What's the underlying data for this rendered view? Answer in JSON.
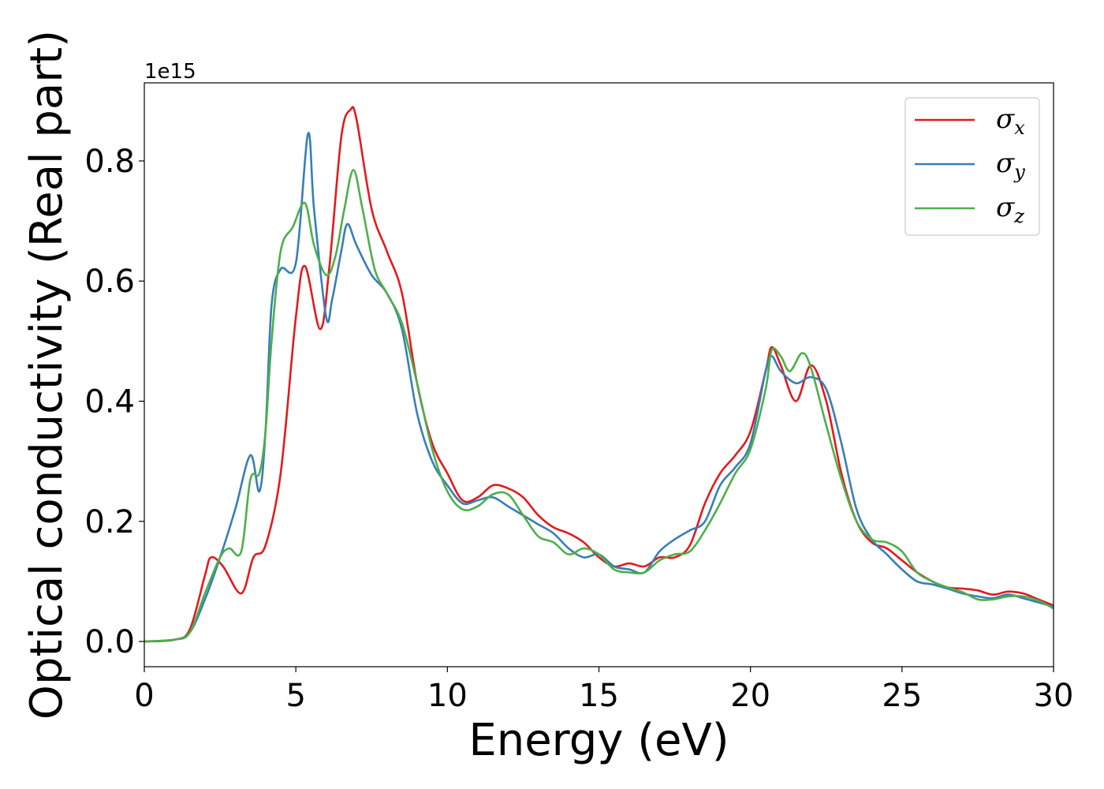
{
  "chart_data": {
    "type": "line",
    "title": "",
    "xlabel": "Energy (eV)",
    "ylabel": "Optical conductivity (Real part)",
    "y_offset_label": "1e15",
    "xlim": [
      0,
      30
    ],
    "ylim": [
      -0.042,
      0.93
    ],
    "xticks": [
      0,
      5,
      10,
      15,
      20,
      25,
      30
    ],
    "xtick_labels": [
      "0",
      "5",
      "10",
      "15",
      "20",
      "25",
      "30"
    ],
    "yticks": [
      0.0,
      0.2,
      0.4,
      0.6,
      0.8
    ],
    "ytick_labels": [
      "0.0",
      "0.2",
      "0.4",
      "0.6",
      "0.8"
    ],
    "grid": false,
    "legend_position": "top-right",
    "series": [
      {
        "name": "σx",
        "symbol": "σ",
        "subscript": "x",
        "color": "#e41a1c",
        "x": [
          0,
          1,
          1.5,
          2,
          2.2,
          2.6,
          3.2,
          3.6,
          4,
          4.5,
          5,
          5.3,
          5.8,
          6.1,
          6.5,
          6.8,
          7.0,
          7.5,
          8.0,
          8.5,
          9.0,
          9.5,
          10,
          10.5,
          11,
          11.5,
          12,
          12.5,
          13,
          13.5,
          14,
          14.5,
          15,
          15.5,
          16,
          16.5,
          17,
          17.5,
          18,
          18.5,
          19,
          19.5,
          20,
          20.5,
          20.7,
          21,
          21.5,
          22,
          22.5,
          23,
          23.5,
          24,
          24.5,
          25,
          25.5,
          26,
          26.5,
          27,
          27.5,
          28,
          28.5,
          29,
          29.5,
          30
        ],
        "y": [
          0,
          0.003,
          0.02,
          0.11,
          0.14,
          0.125,
          0.08,
          0.14,
          0.16,
          0.28,
          0.54,
          0.625,
          0.52,
          0.62,
          0.84,
          0.885,
          0.87,
          0.72,
          0.65,
          0.58,
          0.43,
          0.33,
          0.28,
          0.235,
          0.24,
          0.26,
          0.255,
          0.24,
          0.21,
          0.19,
          0.18,
          0.165,
          0.14,
          0.125,
          0.13,
          0.125,
          0.14,
          0.14,
          0.16,
          0.23,
          0.28,
          0.31,
          0.35,
          0.45,
          0.49,
          0.46,
          0.4,
          0.46,
          0.4,
          0.28,
          0.2,
          0.165,
          0.155,
          0.135,
          0.115,
          0.1,
          0.09,
          0.088,
          0.085,
          0.078,
          0.083,
          0.08,
          0.07,
          0.06
        ]
      },
      {
        "name": "σy",
        "symbol": "σ",
        "subscript": "y",
        "color": "#377eb8",
        "x": [
          0,
          1,
          1.5,
          2,
          2.5,
          3,
          3.5,
          3.8,
          4.0,
          4.2,
          4.5,
          5.0,
          5.4,
          5.6,
          6.0,
          6.2,
          6.5,
          6.7,
          7.0,
          7.5,
          8.0,
          8.5,
          9.0,
          9.5,
          10,
          10.5,
          11,
          11.5,
          12,
          12.5,
          13,
          13.5,
          14,
          14.5,
          15,
          15.5,
          16,
          16.5,
          17,
          17.5,
          18,
          18.5,
          19,
          19.5,
          20,
          20.5,
          20.7,
          21,
          21.5,
          22,
          22.5,
          23,
          23.5,
          24,
          24.5,
          25,
          25.5,
          26,
          26.5,
          27,
          27.5,
          28,
          28.5,
          29,
          29.5,
          30
        ],
        "y": [
          0,
          0.003,
          0.015,
          0.07,
          0.14,
          0.22,
          0.31,
          0.25,
          0.35,
          0.56,
          0.62,
          0.63,
          0.845,
          0.72,
          0.54,
          0.57,
          0.65,
          0.695,
          0.66,
          0.61,
          0.58,
          0.52,
          0.38,
          0.3,
          0.26,
          0.23,
          0.235,
          0.24,
          0.225,
          0.21,
          0.195,
          0.18,
          0.155,
          0.14,
          0.145,
          0.125,
          0.12,
          0.115,
          0.15,
          0.17,
          0.185,
          0.2,
          0.26,
          0.29,
          0.33,
          0.45,
          0.475,
          0.45,
          0.43,
          0.44,
          0.42,
          0.33,
          0.22,
          0.17,
          0.145,
          0.12,
          0.1,
          0.095,
          0.088,
          0.08,
          0.075,
          0.072,
          0.078,
          0.072,
          0.065,
          0.058
        ]
      },
      {
        "name": "σz",
        "symbol": "σ",
        "subscript": "z",
        "color": "#4daf4a",
        "x": [
          0,
          1,
          1.5,
          2,
          2.5,
          2.8,
          3.2,
          3.5,
          3.8,
          4.0,
          4.2,
          4.5,
          4.9,
          5.3,
          5.6,
          6.0,
          6.3,
          6.6,
          6.9,
          7.2,
          7.6,
          8.0,
          8.5,
          9.0,
          9.5,
          10,
          10.5,
          11,
          11.5,
          12,
          12.5,
          13,
          13.5,
          14,
          14.5,
          15,
          15.5,
          16,
          16.5,
          17,
          17.5,
          18,
          18.5,
          19,
          19.5,
          20,
          20.5,
          20.7,
          21,
          21.3,
          21.7,
          22,
          22.5,
          23,
          23.5,
          24,
          24.5,
          25,
          25.5,
          26,
          26.5,
          27,
          27.5,
          28,
          28.5,
          29,
          29.5,
          30
        ],
        "y": [
          0,
          0.003,
          0.015,
          0.08,
          0.14,
          0.155,
          0.15,
          0.27,
          0.28,
          0.35,
          0.5,
          0.65,
          0.69,
          0.73,
          0.66,
          0.61,
          0.64,
          0.72,
          0.785,
          0.72,
          0.62,
          0.58,
          0.53,
          0.43,
          0.32,
          0.25,
          0.22,
          0.225,
          0.245,
          0.245,
          0.21,
          0.175,
          0.165,
          0.145,
          0.155,
          0.145,
          0.12,
          0.115,
          0.115,
          0.135,
          0.145,
          0.15,
          0.185,
          0.23,
          0.28,
          0.32,
          0.42,
          0.485,
          0.475,
          0.45,
          0.48,
          0.455,
          0.36,
          0.27,
          0.2,
          0.17,
          0.165,
          0.15,
          0.115,
          0.1,
          0.09,
          0.082,
          0.07,
          0.07,
          0.075,
          0.075,
          0.068,
          0.055
        ]
      }
    ]
  }
}
